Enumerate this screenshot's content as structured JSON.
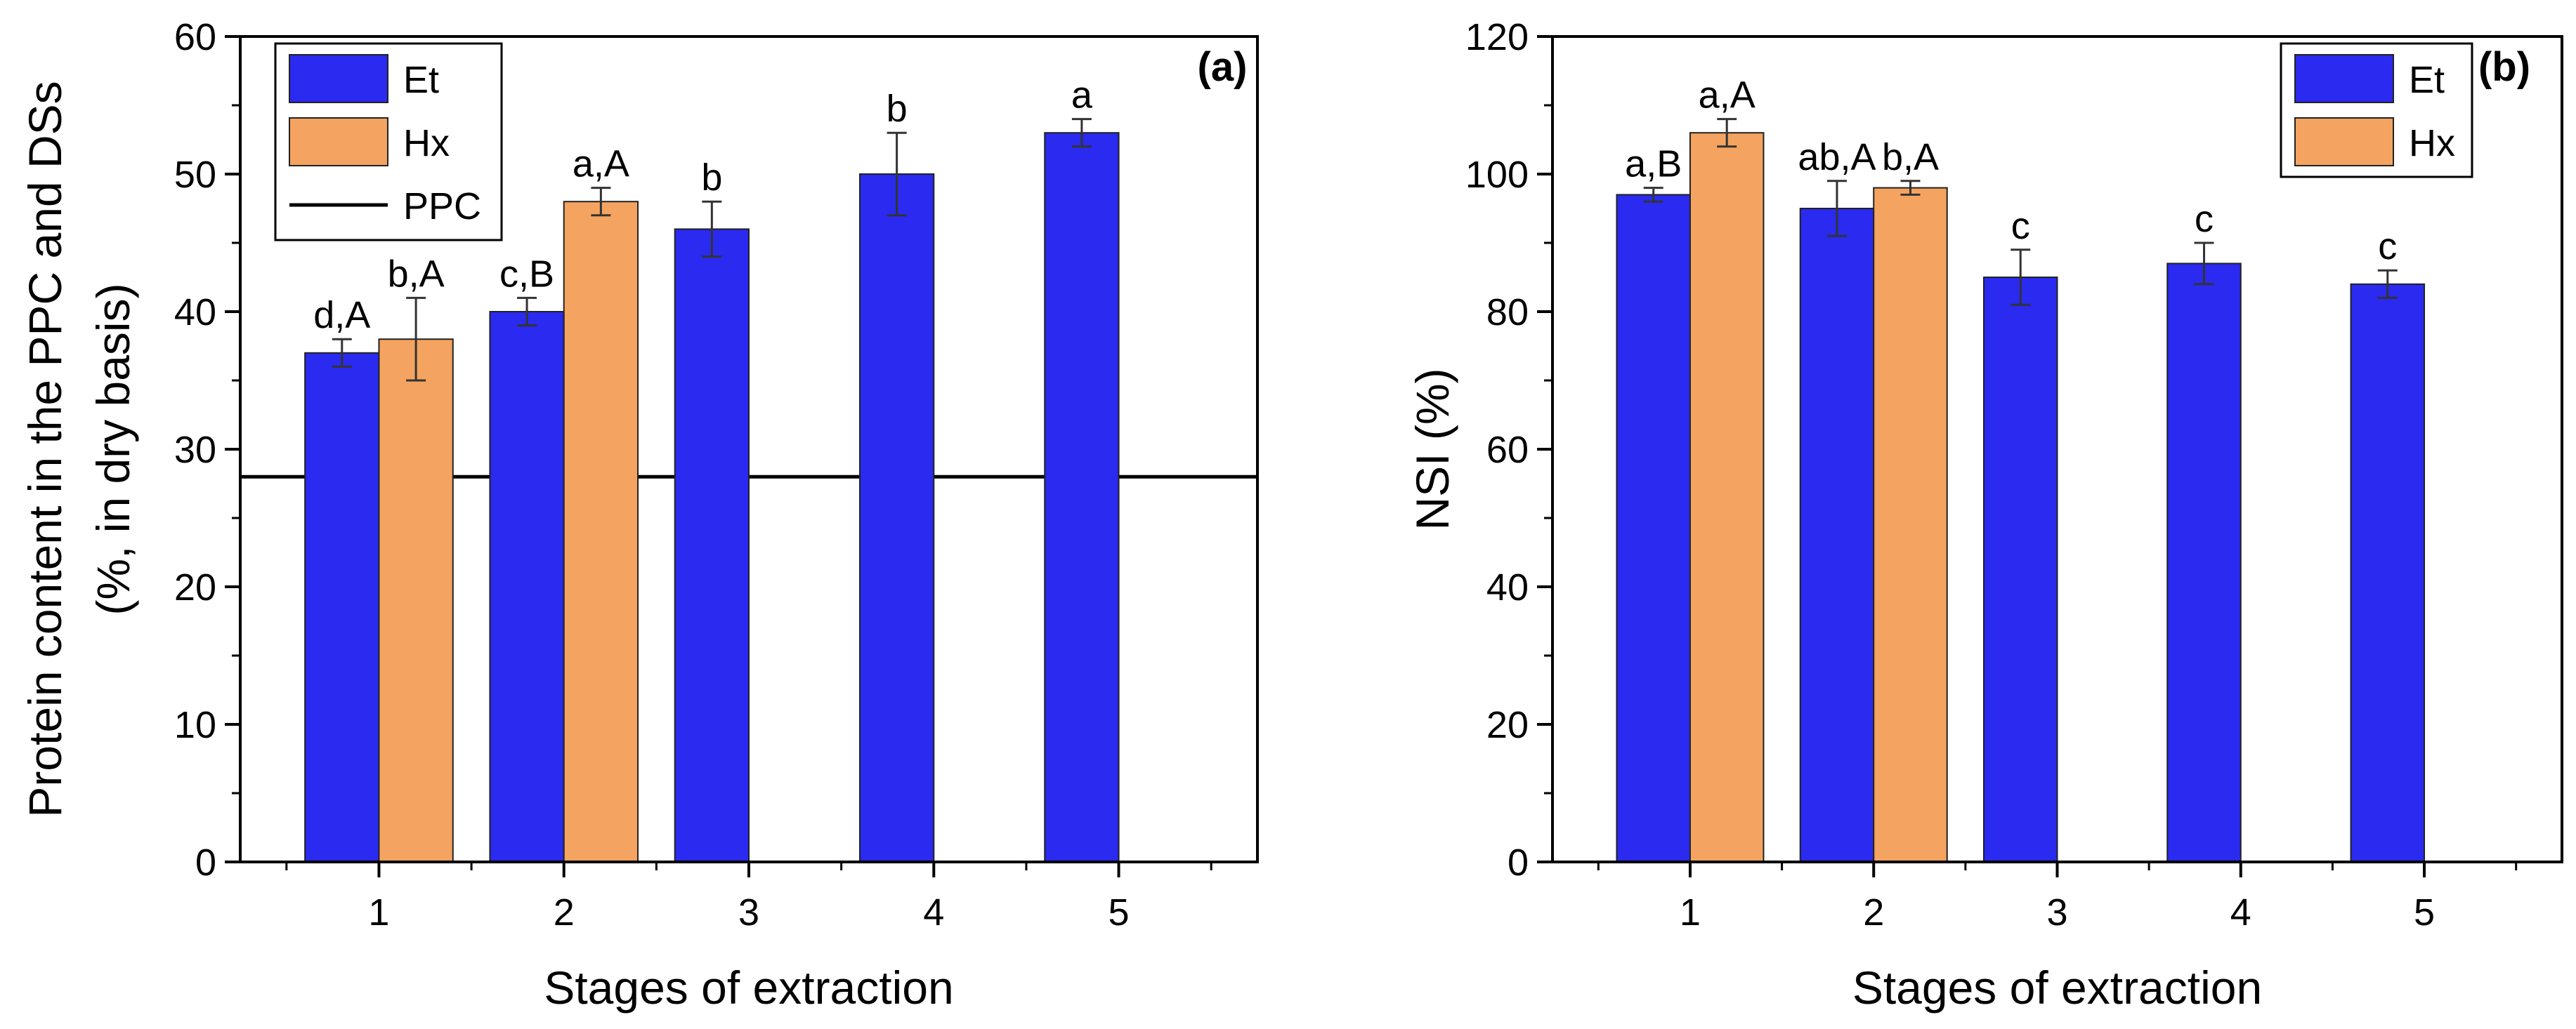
{
  "chart_data": [
    {
      "type": "bar",
      "panel_label": "(a)",
      "categories": [
        "1",
        "2",
        "3",
        "4",
        "5"
      ],
      "xlabel": "Stages of extraction",
      "ylabel_lines": [
        "Protein content in the PPC and DSs",
        "(%, in dry basis)"
      ],
      "ylim": [
        0,
        60
      ],
      "yticks": [
        0,
        10,
        20,
        30,
        40,
        50,
        60
      ],
      "reference_line": {
        "name": "PPC",
        "value": 28,
        "color": "#000000"
      },
      "legend": [
        "Et",
        "Hx",
        "PPC"
      ],
      "legend_position": "top-left",
      "series": [
        {
          "name": "Et",
          "color": "#2a2af0",
          "values": [
            37,
            40,
            46,
            50,
            53
          ],
          "errors": [
            1,
            1,
            2,
            3,
            1
          ],
          "labels": [
            "d,A",
            "c,B",
            "b",
            "b",
            "a"
          ]
        },
        {
          "name": "Hx",
          "color": "#f4a460",
          "values": [
            38,
            48,
            null,
            null,
            null
          ],
          "errors": [
            3,
            1,
            null,
            null,
            null
          ],
          "labels": [
            "b,A",
            "a,A",
            null,
            null,
            null
          ]
        }
      ]
    },
    {
      "type": "bar",
      "panel_label": "(b)",
      "categories": [
        "1",
        "2",
        "3",
        "4",
        "5"
      ],
      "xlabel": "Stages of extraction",
      "ylabel_lines": [
        "NSI (%)"
      ],
      "ylim": [
        0,
        120
      ],
      "yticks": [
        0,
        20,
        40,
        60,
        80,
        100,
        120
      ],
      "legend": [
        "Et",
        "Hx"
      ],
      "legend_position": "top-right",
      "series": [
        {
          "name": "Et",
          "color": "#2a2af0",
          "values": [
            97,
            95,
            85,
            87,
            84
          ],
          "errors": [
            1,
            4,
            4,
            3,
            2
          ],
          "labels": [
            "a,B",
            "ab,A",
            "c",
            "c",
            "c"
          ]
        },
        {
          "name": "Hx",
          "color": "#f4a460",
          "values": [
            106,
            98,
            null,
            null,
            null
          ],
          "errors": [
            2,
            1,
            null,
            null,
            null
          ],
          "labels": [
            "a,A",
            "b,A",
            null,
            null,
            null
          ]
        }
      ]
    }
  ]
}
